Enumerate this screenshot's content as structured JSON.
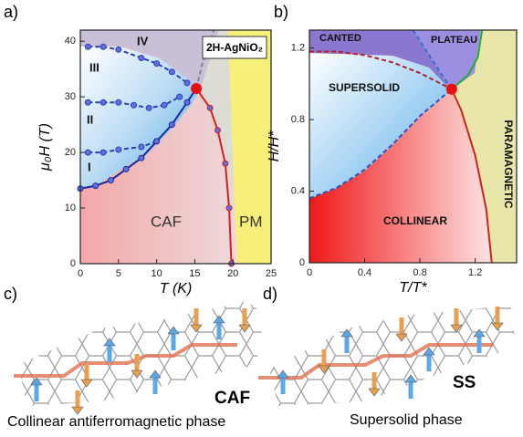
{
  "chart_data": [
    {
      "type": "phase",
      "xlabel": "T (K)",
      "ylabel": "μ₀H (T)",
      "xlim": [
        0,
        25
      ],
      "ylim": [
        0,
        42
      ],
      "xticks": [
        0,
        5,
        10,
        15,
        20,
        25
      ],
      "yticks": [
        0,
        10,
        20,
        30,
        40
      ],
      "annotations": [
        "2H-AgNiO₂",
        "IV",
        "III",
        "II",
        "I",
        "CAF",
        "PM"
      ],
      "series": [
        {
          "x": [
            1,
            3,
            5,
            8,
            10,
            12,
            14
          ],
          "values": [
            39,
            39,
            38.5,
            37,
            36,
            34.5,
            32.5
          ],
          "color": "#2a3fb0",
          "marker": true,
          "dash": true
        },
        {
          "x": [
            1,
            3,
            5,
            7,
            9,
            11,
            13
          ],
          "values": [
            29,
            29,
            29,
            28.5,
            28,
            28.5,
            30
          ],
          "color": "#2a3fb0",
          "marker": true,
          "dash": true
        },
        {
          "x": [
            1,
            3,
            5,
            8,
            10
          ],
          "values": [
            20,
            20,
            20.5,
            21,
            22
          ],
          "color": "#2a3fb0",
          "marker": true,
          "dash": true
        },
        {
          "x": [
            0,
            2,
            4,
            6,
            8,
            10,
            12,
            14,
            15.2
          ],
          "values": [
            13.5,
            14,
            15,
            17,
            19,
            22,
            25,
            29,
            31.5
          ],
          "color": "#1a2a9a",
          "marker": true,
          "dash": false
        },
        {
          "x": [
            15.2,
            17,
            18,
            19,
            19.5,
            19.8
          ],
          "values": [
            31.5,
            28,
            24,
            18,
            10,
            0
          ],
          "color": "#d02020",
          "marker": true,
          "dash": false
        },
        {
          "x": [
            15.2,
            16,
            17.5
          ],
          "values": [
            31.5,
            36,
            42
          ],
          "color": "#888888",
          "marker": false,
          "dash": true
        }
      ],
      "critical_point": {
        "x": 15.2,
        "y": 31.5,
        "color": "#e81010"
      }
    },
    {
      "type": "phase",
      "xlabel": "T/T*",
      "ylabel": "H/H*",
      "xlim": [
        0,
        1.5
      ],
      "ylim": [
        0,
        1.3
      ],
      "xticks": [
        0,
        0.4,
        0.8,
        1.2
      ],
      "yticks": [
        0,
        0.4,
        0.8,
        1.2
      ],
      "annotations": [
        "CANTED",
        "PLATEAU",
        "SUPERSOLID",
        "COLLINEAR",
        "PARAMAGNETIC"
      ],
      "series": [
        {
          "x": [
            0,
            0.2,
            0.4,
            0.6,
            0.8,
            1.03
          ],
          "values": [
            0.36,
            0.42,
            0.52,
            0.66,
            0.82,
            0.97
          ],
          "color": "#3050c0",
          "marker": false,
          "dash": true
        },
        {
          "x": [
            0,
            0.2,
            0.4,
            0.6,
            0.8,
            1.03
          ],
          "values": [
            1.18,
            1.18,
            1.16,
            1.12,
            1.06,
            0.97
          ],
          "color": "#b02030",
          "marker": false,
          "dash": true
        },
        {
          "x": [
            0.75,
            0.85,
            0.95,
            1.03
          ],
          "values": [
            1.3,
            1.18,
            1.06,
            0.97
          ],
          "color": "#3070d0",
          "marker": false,
          "dash": true
        },
        {
          "x": [
            1.03,
            1.1,
            1.2,
            1.28,
            1.32
          ],
          "values": [
            0.97,
            0.85,
            0.6,
            0.3,
            0
          ],
          "color": "#d02020",
          "marker": false,
          "dash": false
        },
        {
          "x": [
            1.03,
            1.15,
            1.22,
            1.25
          ],
          "values": [
            0.97,
            1.05,
            1.15,
            1.3
          ],
          "color": "#20b030",
          "marker": false,
          "dash": false
        }
      ],
      "critical_point": {
        "x": 1.03,
        "y": 0.97,
        "color": "#e81010"
      }
    }
  ],
  "panels": {
    "labels": [
      "a)",
      "b)",
      "c)",
      "d)"
    ],
    "c_short": "CAF",
    "c_caption": "Collinear antiferromagnetic phase",
    "d_short": "SS",
    "d_caption": "Supersolid phase"
  }
}
